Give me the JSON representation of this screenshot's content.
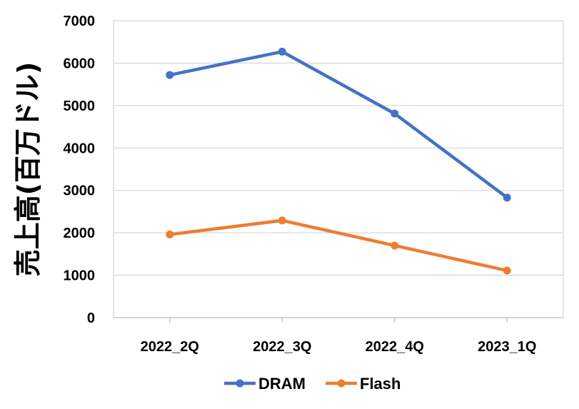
{
  "chart_data": {
    "type": "line",
    "categories": [
      "2022_2Q",
      "2022_3Q",
      "2022_4Q",
      "2023_1Q"
    ],
    "series": [
      {
        "name": "DRAM",
        "values": [
          5720,
          6270,
          4810,
          2830
        ],
        "color": "#4472C4"
      },
      {
        "name": "Flash",
        "values": [
          1960,
          2290,
          1700,
          1110
        ],
        "color": "#ED7D31"
      }
    ],
    "ylim": [
      0,
      7000
    ],
    "yticks": [
      0,
      1000,
      2000,
      3000,
      4000,
      5000,
      6000,
      7000
    ],
    "ylabel": "売上高(百万ドル)",
    "xlabel": "",
    "grid": true,
    "legend": "bottom"
  }
}
